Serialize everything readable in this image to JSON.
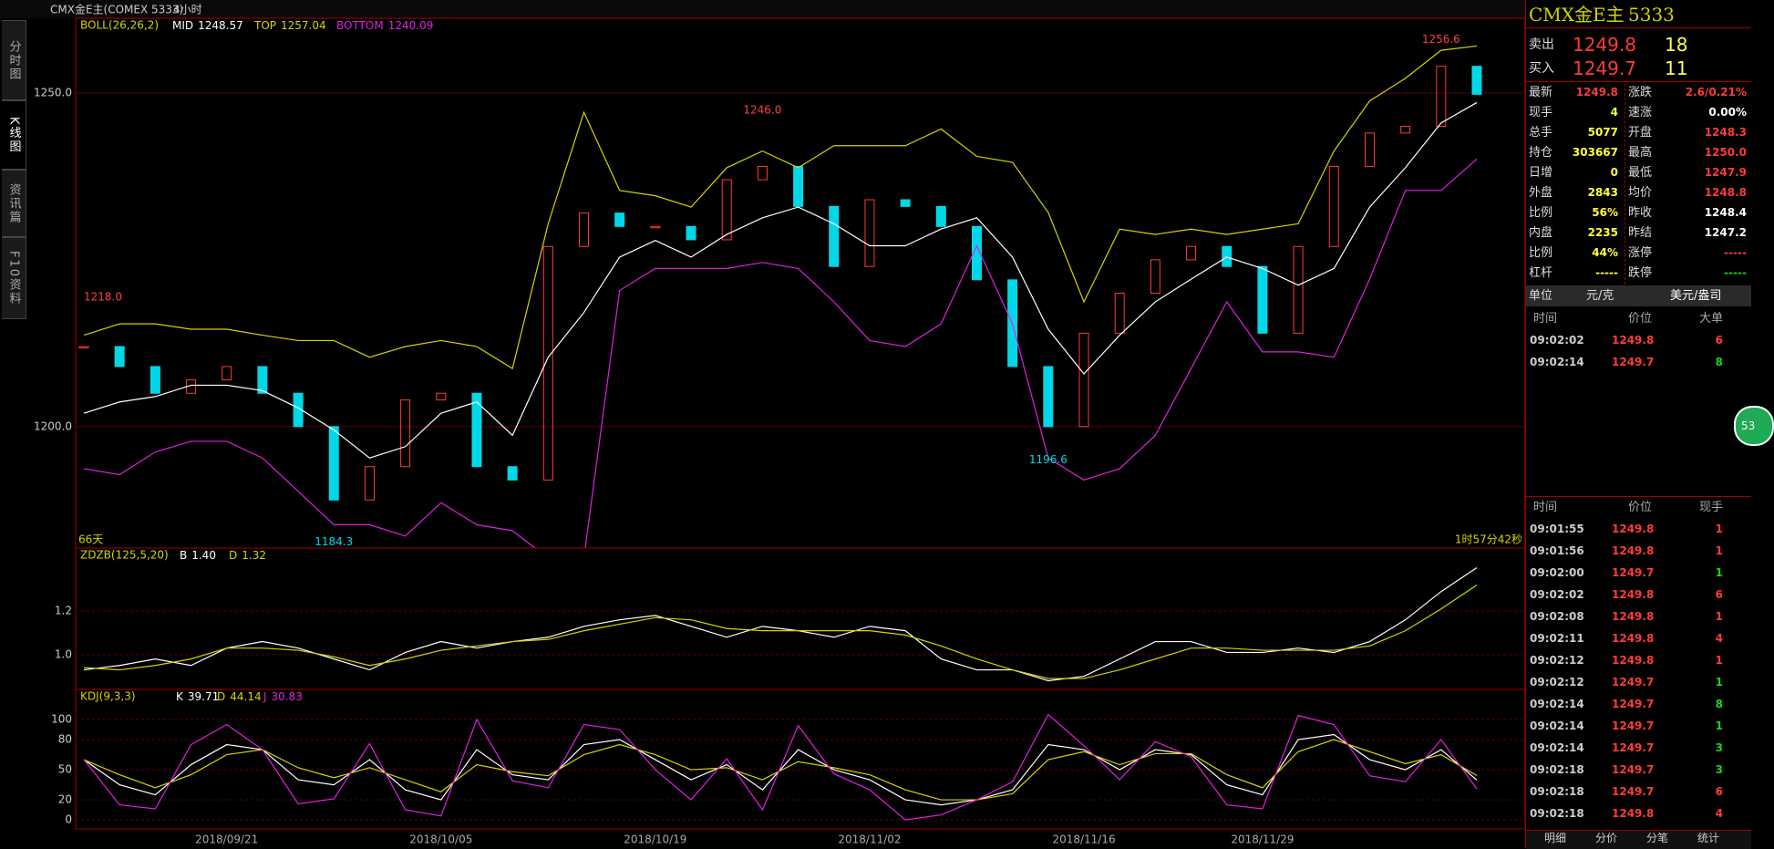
{
  "toolbar": {
    "symbol": "CMX金E主(COMEX 5333)",
    "period": "4小时"
  },
  "side_tabs": [
    "分时图",
    "K线图",
    "资讯篇",
    "F10资料"
  ],
  "chart_data": [
    {
      "type": "candlestick",
      "title": "BOLL(26,26,2)",
      "categories": [
        null,
        null,
        null,
        null,
        "2018/09/21",
        null,
        null,
        null,
        null,
        null,
        "2018/10/05",
        null,
        null,
        null,
        null,
        null,
        "2018/10/19",
        null,
        null,
        null,
        null,
        null,
        "2018/11/02",
        null,
        null,
        null,
        null,
        null,
        "2018/11/16",
        null,
        null,
        null,
        null,
        "2018/11/29",
        null,
        null,
        null,
        null,
        null,
        null
      ],
      "close": [
        1212,
        1209,
        1205,
        1207,
        1209,
        1205,
        1200,
        1189,
        1194,
        1204,
        1205,
        1194,
        1192,
        1227,
        1232,
        1230,
        1230,
        1228,
        1237,
        1239,
        1233,
        1224,
        1234,
        1233,
        1230,
        1222,
        1209,
        1200,
        1214,
        1220,
        1225,
        1227,
        1224,
        1214,
        1227,
        1239,
        1244,
        1245,
        1254,
        1249.8
      ],
      "up_color": "#ff3b3b",
      "down_color": "#00d8e8",
      "series": [
        {
          "name": "MID",
          "last": 1248.57,
          "color": "#ffffff",
          "values": [
            1202.0,
            1203.7,
            1204.5,
            1206.2,
            1206.2,
            1205.4,
            1202.8,
            1199.5,
            1195.3,
            1197.0,
            1202.0,
            1203.7,
            1198.7,
            1210.4,
            1217.1,
            1225.4,
            1227.9,
            1225.4,
            1228.8,
            1231.3,
            1232.9,
            1230.4,
            1227.1,
            1227.1,
            1229.6,
            1231.3,
            1225.4,
            1214.6,
            1207.9,
            1213.7,
            1218.7,
            1222.1,
            1225.4,
            1223.7,
            1221.2,
            1223.7,
            1232.9,
            1238.8,
            1245.5,
            1248.57
          ]
        },
        {
          "name": "TOP",
          "last": 1257.04,
          "color": "#d4d400",
          "values": [
            1213.7,
            1215.4,
            1215.4,
            1214.6,
            1214.6,
            1213.7,
            1212.9,
            1212.9,
            1210.4,
            1212.0,
            1212.9,
            1212.0,
            1208.7,
            1230.4,
            1247.1,
            1235.4,
            1234.6,
            1232.9,
            1238.8,
            1241.3,
            1238.8,
            1242.1,
            1242.1,
            1242.1,
            1244.6,
            1240.5,
            1239.6,
            1232.1,
            1218.7,
            1229.6,
            1228.8,
            1229.6,
            1228.8,
            1229.6,
            1230.4,
            1241.3,
            1248.8,
            1252.2,
            1256.4,
            1257.04
          ]
        },
        {
          "name": "BOTTOM",
          "last": 1240.09,
          "color": "#e020e0",
          "values": [
            1193.7,
            1192.8,
            1196.2,
            1197.8,
            1197.8,
            1195.3,
            1190.3,
            1185.3,
            1185.3,
            1183.6,
            1188.6,
            1185.3,
            1184.4,
            1180.3,
            1180.3,
            1220.4,
            1223.7,
            1223.7,
            1223.7,
            1224.6,
            1223.7,
            1218.7,
            1212.9,
            1212.0,
            1215.4,
            1227.1,
            1215.4,
            1195.3,
            1192.0,
            1193.7,
            1198.7,
            1208.7,
            1218.7,
            1211.2,
            1211.2,
            1210.4,
            1222.1,
            1235.4,
            1235.4,
            1240.09
          ]
        }
      ],
      "ylim": [
        1181.8,
        1261.2
      ],
      "yticks": [
        {
          "value": 1250,
          "label": "1250.0"
        },
        {
          "value": 1200,
          "label": "1200.0"
        }
      ],
      "annotations": [
        {
          "value": 1256.6,
          "label": "1256.6"
        },
        {
          "value": 1246,
          "label": "1246.0"
        },
        {
          "value": 1218,
          "label": "1218.0"
        },
        {
          "value": 1196.6,
          "label": "1196.6"
        },
        {
          "value": 1184.3,
          "label": "1184.3"
        }
      ],
      "footer_left": "66天",
      "footer_right": "1时57分42秒"
    },
    {
      "type": "line",
      "title": "ZDZB(125,5,20)",
      "series": [
        {
          "name": "B",
          "last": {
            "value": 1.4,
            "label": "1.40"
          },
          "color": "#ffffff",
          "values": [
            0.93,
            0.95,
            0.98,
            0.95,
            1.03,
            1.06,
            1.03,
            0.98,
            0.93,
            1.01,
            1.06,
            1.03,
            1.06,
            1.08,
            1.13,
            1.16,
            1.18,
            1.13,
            1.08,
            1.13,
            1.11,
            1.08,
            1.13,
            1.11,
            0.98,
            0.93,
            0.93,
            0.88,
            0.9,
            0.98,
            1.06,
            1.06,
            1.01,
            1.01,
            1.03,
            1.01,
            1.06,
            1.16,
            1.29,
            1.4
          ]
        },
        {
          "name": "D",
          "last": 1.32,
          "color": "#d4d400",
          "values": [
            0.94,
            0.93,
            0.95,
            0.98,
            1.03,
            1.03,
            1.02,
            0.99,
            0.95,
            0.98,
            1.02,
            1.04,
            1.06,
            1.07,
            1.11,
            1.14,
            1.17,
            1.16,
            1.12,
            1.11,
            1.11,
            1.11,
            1.11,
            1.09,
            1.04,
            0.98,
            0.93,
            0.89,
            0.89,
            0.93,
            0.98,
            1.03,
            1.03,
            1.02,
            1.02,
            1.02,
            1.04,
            1.11,
            1.21,
            1.32
          ]
        }
      ],
      "ylim": [
        0.84,
        1.49
      ],
      "yticks": [
        {
          "value": 1,
          "label": "1.0"
        },
        1.2
      ]
    },
    {
      "type": "line",
      "title": "KDJ(9,3,3)",
      "series": [
        {
          "name": "K",
          "last": 39.71,
          "color": "#ffffff",
          "values": [
            60,
            35,
            25,
            55,
            75,
            70,
            40,
            35,
            60,
            30,
            20,
            70,
            45,
            40,
            75,
            80,
            60,
            40,
            55,
            30,
            70,
            50,
            40,
            20,
            15,
            20,
            30,
            75,
            70,
            50,
            70,
            65,
            35,
            25,
            80,
            85,
            60,
            50,
            70,
            39.71
          ]
        },
        {
          "name": "D",
          "last": 44.14,
          "color": "#d4d400",
          "values": [
            60,
            45,
            32,
            45,
            65,
            70,
            52,
            42,
            52,
            40,
            28,
            55,
            48,
            44,
            65,
            75,
            65,
            50,
            52,
            40,
            58,
            52,
            45,
            30,
            20,
            20,
            26,
            60,
            68,
            55,
            66,
            66,
            45,
            32,
            68,
            80,
            68,
            56,
            65,
            44.14
          ]
        },
        {
          "name": "J",
          "last": 30.83,
          "color": "#e020e0",
          "values": [
            60,
            15,
            11,
            75,
            95,
            70,
            16,
            21,
            76,
            10,
            4,
            100,
            39,
            32,
            95,
            90,
            50,
            20,
            61,
            10,
            94,
            46,
            30,
            0,
            5,
            20,
            38,
            105,
            74,
            40,
            78,
            63,
            15,
            11,
            104,
            95,
            44,
            38,
            80,
            30.83
          ]
        }
      ],
      "ylim": [
        -9,
        130
      ],
      "yticks": [
        0,
        20,
        50,
        80,
        100
      ]
    }
  ],
  "quote": {
    "name": "CMX金E主",
    "code": "5333",
    "sell": {
      "label": "卖出",
      "price": "1249.8",
      "volume": "18"
    },
    "buy": {
      "label": "买入",
      "price": "1249.7",
      "volume": "11"
    },
    "stats": [
      [
        "最新",
        "1249.8",
        "涨跌",
        "2.6/0.21%"
      ],
      [
        "现手",
        "4",
        "速涨",
        "0.00%"
      ],
      [
        "总手",
        "5077",
        "开盘",
        "1248.3"
      ],
      [
        "持仓",
        "303667",
        "最高",
        "1250.0"
      ],
      [
        "日增",
        "0",
        "最低",
        "1247.9"
      ],
      [
        "外盘",
        "2843",
        "均价",
        "1248.8"
      ],
      [
        "比例",
        "56%",
        "昨收",
        "1248.4"
      ],
      [
        "内盘",
        "2235",
        "昨结",
        "1247.2"
      ],
      [
        "比例",
        "44%",
        "涨停",
        "-----"
      ],
      [
        "杠杆",
        "-----",
        "跌停",
        "-----"
      ]
    ],
    "unit": {
      "label": "单位",
      "options": [
        "元/克",
        "美元/盎司"
      ]
    },
    "big_orders": {
      "headers": [
        "时间",
        "价位",
        "大单"
      ],
      "rows": [
        [
          "09:02:02",
          "1249.8",
          "6"
        ],
        [
          "09:02:14",
          "1249.7",
          "8"
        ]
      ]
    },
    "ticks": {
      "headers": [
        "时间",
        "价位",
        "现手"
      ],
      "rows": [
        [
          "09:01:55",
          "1249.8",
          "1"
        ],
        [
          "09:01:56",
          "1249.8",
          "1"
        ],
        [
          "09:02:00",
          "1249.7",
          "1"
        ],
        [
          "09:02:02",
          "1249.8",
          "6"
        ],
        [
          "09:02:08",
          "1249.8",
          "1"
        ],
        [
          "09:02:11",
          "1249.8",
          "4"
        ],
        [
          "09:02:12",
          "1249.8",
          "1"
        ],
        [
          "09:02:12",
          "1249.7",
          "1"
        ],
        [
          "09:02:14",
          "1249.7",
          "8"
        ],
        [
          "09:02:14",
          "1249.7",
          "1"
        ],
        [
          "09:02:14",
          "1249.7",
          "3"
        ],
        [
          "09:02:18",
          "1249.7",
          "3"
        ],
        [
          "09:02:18",
          "1249.7",
          "6"
        ],
        [
          "09:02:18",
          "1249.8",
          "4"
        ]
      ]
    },
    "tabs": [
      "明细",
      "分价",
      "分笔",
      "统计"
    ],
    "badge": "53"
  }
}
